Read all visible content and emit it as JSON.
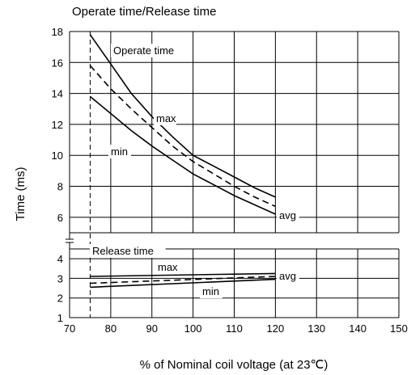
{
  "chart_data": {
    "type": "line",
    "title": "Operate time/Release time",
    "xlabel": "% of Nominal coil voltage (at 23℃)",
    "ylabel": "Time (ms)",
    "xlim": [
      70,
      150
    ],
    "x_ticks": [
      70,
      80,
      90,
      100,
      110,
      120,
      130,
      140,
      150
    ],
    "upper_panel": {
      "label": "Operate time",
      "ylim": [
        5,
        18
      ],
      "y_ticks": [
        6,
        8,
        10,
        12,
        14,
        16,
        18
      ],
      "series": [
        {
          "name": "max",
          "style": "solid",
          "x": [
            75,
            80,
            85,
            90,
            95,
            100,
            105,
            110,
            115,
            120
          ],
          "y": [
            17.8,
            15.9,
            14.0,
            12.5,
            11.2,
            10.0,
            9.3,
            8.6,
            7.9,
            7.3
          ]
        },
        {
          "name": "avg",
          "style": "dashed",
          "x": [
            75,
            80,
            85,
            90,
            95,
            100,
            105,
            110,
            115,
            120
          ],
          "y": [
            15.8,
            14.3,
            13.0,
            11.8,
            10.6,
            9.6,
            8.8,
            8.0,
            7.3,
            6.7
          ]
        },
        {
          "name": "min",
          "style": "solid",
          "x": [
            75,
            80,
            85,
            90,
            95,
            100,
            105,
            110,
            115,
            120
          ],
          "y": [
            13.8,
            12.7,
            11.6,
            10.6,
            9.7,
            8.8,
            8.1,
            7.4,
            6.8,
            6.2
          ]
        }
      ]
    },
    "lower_panel": {
      "label": "Release time",
      "ylim": [
        1,
        4.5
      ],
      "y_ticks": [
        1,
        2,
        3,
        4
      ],
      "series": [
        {
          "name": "max",
          "style": "solid",
          "x": [
            75,
            120
          ],
          "y": [
            3.1,
            3.25
          ]
        },
        {
          "name": "avg",
          "style": "dashed",
          "x": [
            75,
            120
          ],
          "y": [
            2.75,
            3.1
          ]
        },
        {
          "name": "min",
          "style": "solid",
          "x": [
            75,
            120
          ],
          "y": [
            2.55,
            2.95
          ]
        }
      ]
    },
    "reference_line_x": 75,
    "grid": true,
    "annotations": {
      "upper_max": "max",
      "upper_min": "min",
      "upper_avg": "avg",
      "lower_max": "max",
      "lower_min": "min",
      "lower_avg": "avg"
    }
  },
  "colors": {
    "line": "#000000",
    "grid": "#000000"
  }
}
